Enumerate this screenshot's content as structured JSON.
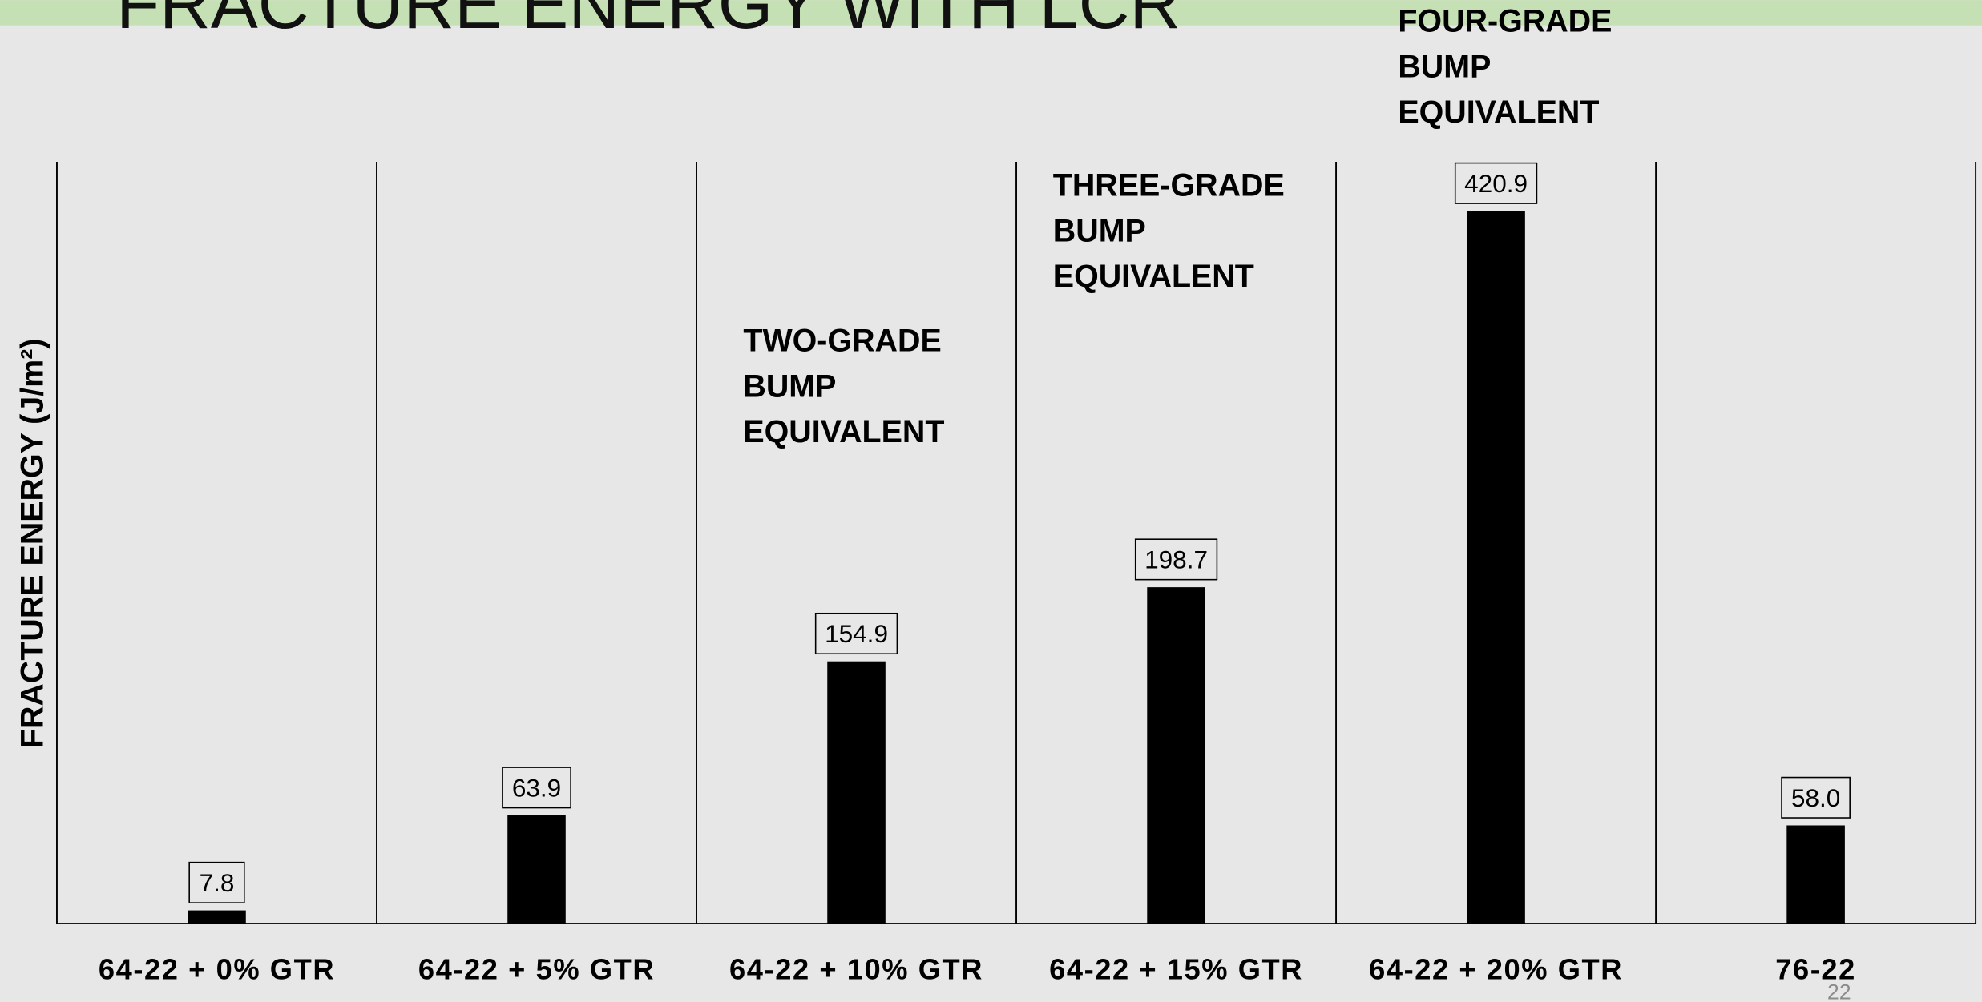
{
  "chart_data": {
    "type": "bar",
    "title": "FRACTURE ENERGY WITH LCR",
    "y_label": "FRACTURE ENERGY (J/m²)",
    "categories": [
      "64-22 + 0% GTR",
      "64-22 + 5% GTR",
      "64-22 + 10% GTR",
      "64-22 + 15% GTR",
      "64-22 + 20% GTR",
      "76-22"
    ],
    "values": [
      7.8,
      63.9,
      154.9,
      198.7,
      420.9,
      58
    ],
    "value_labels": [
      "7.8",
      "63.9",
      "154.9",
      "198.7",
      "420.9",
      "58.0"
    ],
    "color": "#000000",
    "ylim": [
      0,
      450
    ],
    "annotations": [
      {
        "lines": [
          "TWO-GRADE",
          "BUMP",
          "EQUIVALENT"
        ]
      },
      {
        "lines": [
          "THREE-GRADE",
          "BUMP",
          "EQUIVALENT"
        ]
      },
      {
        "lines": [
          "FOUR-GRADE",
          "BUMP",
          "EQUIVALENT"
        ]
      }
    ],
    "page_number": "22"
  }
}
